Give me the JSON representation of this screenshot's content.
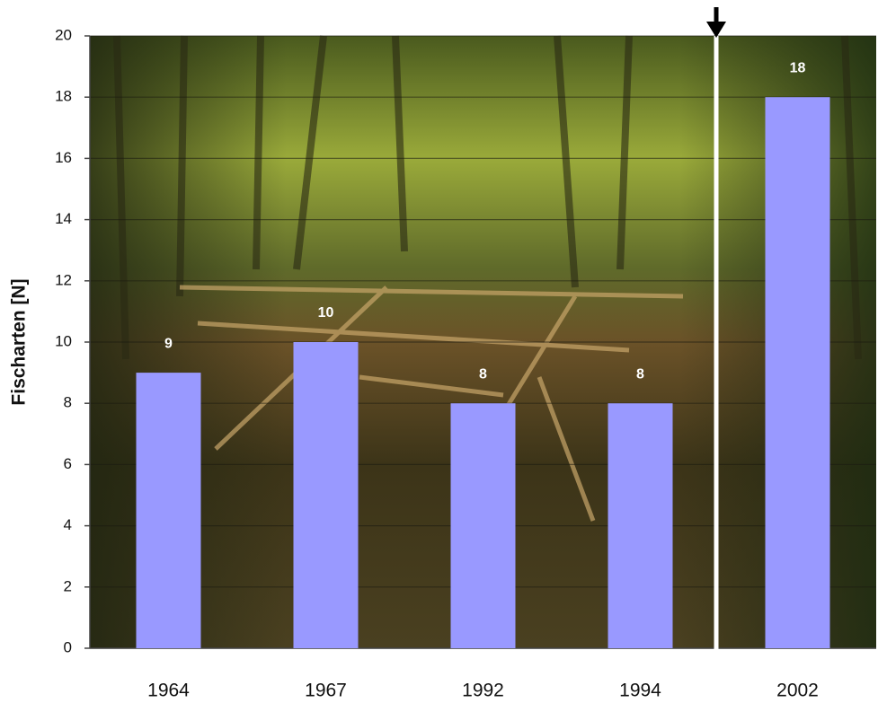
{
  "chart_data": {
    "type": "bar",
    "y_label": "Fischarten  [N]",
    "categories": [
      "1964",
      "1967",
      "1992",
      "1994",
      "2002"
    ],
    "values": [
      9,
      10,
      8,
      8,
      18
    ],
    "color": "#9999ff",
    "ylim": [
      0,
      20
    ],
    "yticks": [
      0,
      2,
      4,
      6,
      8,
      10,
      12,
      14,
      16,
      18,
      20
    ],
    "grid": true
  }
}
